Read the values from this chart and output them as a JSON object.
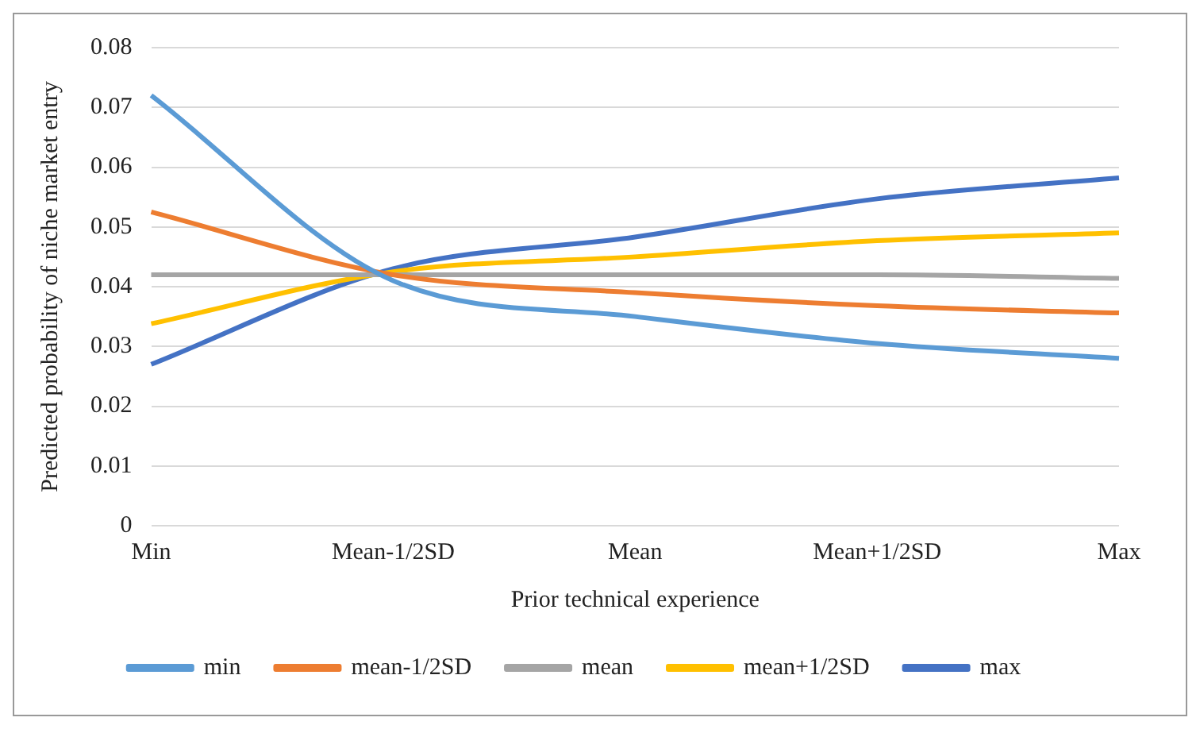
{
  "chart_data": {
    "type": "line",
    "xlabel": "Prior technical experience",
    "ylabel": "Predicted probability of niche market entry",
    "categories": [
      "Min",
      "Mean-1/2SD",
      "Mean",
      "Mean+1/2SD",
      "Max"
    ],
    "series": [
      {
        "name": "min",
        "color": "#5b9bd5",
        "values": [
          0.072,
          0.041,
          0.035,
          0.0305,
          0.028
        ]
      },
      {
        "name": "mean-1/2SD",
        "color": "#ed7d31",
        "values": [
          0.0525,
          0.042,
          0.039,
          0.0368,
          0.0356
        ]
      },
      {
        "name": "mean",
        "color": "#a5a5a5",
        "values": [
          0.042,
          0.042,
          0.042,
          0.042,
          0.0414
        ]
      },
      {
        "name": "mean+1/2SD",
        "color": "#ffc000",
        "values": [
          0.0338,
          0.0425,
          0.045,
          0.0477,
          0.049
        ]
      },
      {
        "name": "max",
        "color": "#4472c4",
        "values": [
          0.027,
          0.043,
          0.0483,
          0.0547,
          0.0582
        ]
      }
    ],
    "ylim": [
      0,
      0.08
    ],
    "yticks": [
      0,
      0.01,
      0.02,
      0.03,
      0.04,
      0.05,
      0.06,
      0.07,
      0.08
    ],
    "grid": "y",
    "legend": "bottom",
    "marker": "none",
    "line_style": "solid"
  }
}
